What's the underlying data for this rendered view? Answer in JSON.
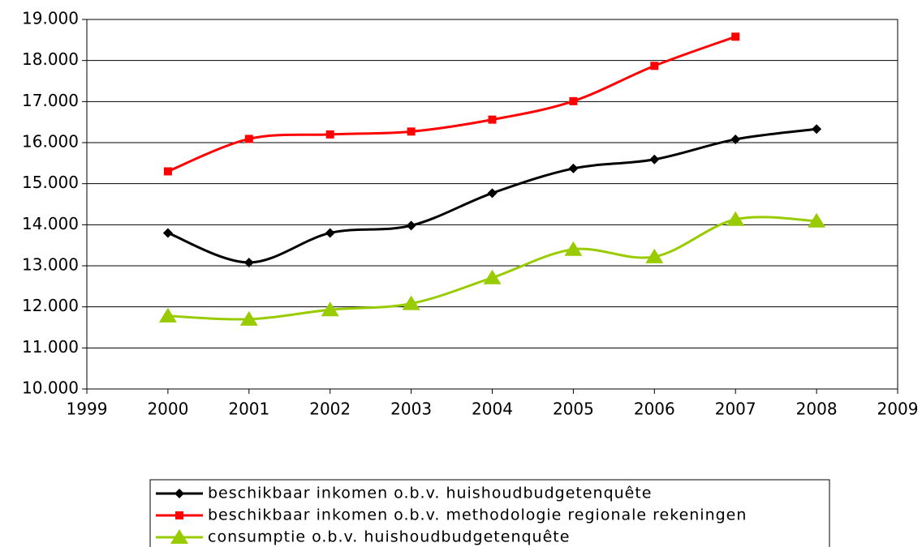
{
  "chart_data": {
    "type": "line",
    "x": [
      2000,
      2001,
      2002,
      2003,
      2004,
      2005,
      2006,
      2007,
      2008
    ],
    "xlim": [
      1999,
      2009
    ],
    "xticks": [
      1999,
      2000,
      2001,
      2002,
      2003,
      2004,
      2005,
      2006,
      2007,
      2008,
      2009
    ],
    "ylim": [
      10000,
      19000
    ],
    "yticks": [
      {
        "value": 10000,
        "label": "10.000"
      },
      {
        "value": 11000,
        "label": "11.000"
      },
      {
        "value": 12000,
        "label": "12.000"
      },
      {
        "value": 13000,
        "label": "13.000"
      },
      {
        "value": 14000,
        "label": "14.000"
      },
      {
        "value": 15000,
        "label": "15.000"
      },
      {
        "value": 16000,
        "label": "16.000"
      },
      {
        "value": 17000,
        "label": "17.000"
      },
      {
        "value": 18000,
        "label": "18.000"
      },
      {
        "value": 19000,
        "label": "19.000"
      }
    ],
    "grid": true,
    "legend": "bottom",
    "series": [
      {
        "name": "beschikbaar inkomen o.b.v. huishoudbudgetenquête",
        "color": "#000000",
        "marker": "diamond",
        "values": [
          13800,
          13080,
          13800,
          13980,
          14770,
          15370,
          15590,
          16080,
          16330
        ]
      },
      {
        "name": "beschikbaar inkomen o.b.v. methodologie regionale rekeningen",
        "color": "#ff0000",
        "marker": "square",
        "values": [
          15300,
          16090,
          16200,
          16270,
          16560,
          17010,
          17870,
          18580,
          null
        ]
      },
      {
        "name": "consumptie o.b.v. huishoudbudgetenquête",
        "color": "#99cc00",
        "marker": "triangle",
        "values": [
          11780,
          11700,
          11930,
          12080,
          12710,
          13400,
          13220,
          14130,
          14090
        ]
      }
    ]
  }
}
